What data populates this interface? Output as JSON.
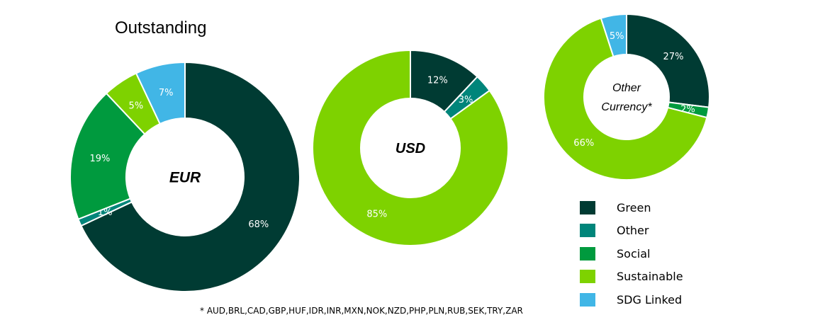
{
  "title": "Outstanding",
  "footnote": "* AUD,BRL,CAD,GBP,HUF,IDR,INR,MXN,NOK,NZD,PHP,PLN,RUB,SEK,TRY,ZAR",
  "colors": {
    "Green": "#003b33",
    "Other": "#00857a",
    "Social": "#009a3e",
    "Sustainable": "#7ed200",
    "SDG Linked": "#41b6e6"
  },
  "legend": [
    "Green",
    "Other",
    "Social",
    "Sustainable",
    "SDG Linked"
  ],
  "chart_data": [
    {
      "type": "pie",
      "center_label": "EUR",
      "categories": [
        "Green",
        "Other",
        "Social",
        "Sustainable",
        "SDG Linked"
      ],
      "values": [
        68,
        1,
        19,
        5,
        7
      ],
      "labels": [
        "68%",
        "1%",
        "19%",
        "5%",
        "7%"
      ]
    },
    {
      "type": "pie",
      "center_label": "USD",
      "categories": [
        "Green",
        "Other",
        "Sustainable"
      ],
      "values": [
        12,
        3,
        85
      ],
      "labels": [
        "12%",
        "3%",
        "85%"
      ]
    },
    {
      "type": "pie",
      "center_label": "Other Currency*",
      "center_label_lines": [
        "Other",
        "Currency*"
      ],
      "categories": [
        "Green",
        "Social",
        "Sustainable",
        "SDG Linked"
      ],
      "values": [
        27,
        2,
        66,
        5
      ],
      "labels": [
        "27%",
        "2%",
        "66%",
        "5%"
      ]
    }
  ]
}
